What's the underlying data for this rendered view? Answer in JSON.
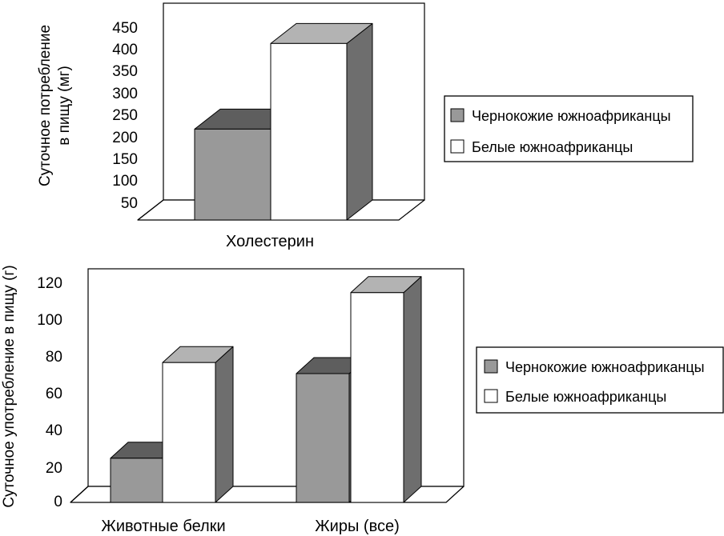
{
  "colors": {
    "black_front": "#999999",
    "black_top": "#5e5e5e",
    "black_side": "#6e6e6e",
    "white_front": "#ffffff",
    "white_top": "#b3b3b3",
    "white_side": "#6e6e6e",
    "floor": "#ffffff",
    "line": "#000000"
  },
  "chart_data": [
    {
      "type": "bar",
      "categories": [
        "Холестерин"
      ],
      "series": [
        {
          "name": "Чернокожие южноафриканцы",
          "values": [
            207
          ]
        },
        {
          "name": "Белые южноафриканцы",
          "values": [
            402
          ]
        }
      ],
      "ylabel": [
        "Суточное потребление",
        "в пищу (мг)"
      ],
      "yticks": [
        "50",
        "100",
        "150",
        "200",
        "250",
        "300",
        "350",
        "400",
        "450"
      ],
      "ylim": [
        0,
        450
      ],
      "legend_position": "right",
      "style": "3d"
    },
    {
      "type": "bar",
      "categories": [
        "Животные белки",
        "Жиры (все)"
      ],
      "series": [
        {
          "name": "Чернокожие южноафриканцы",
          "values": [
            24,
            70
          ]
        },
        {
          "name": "Белые южноафриканцы",
          "values": [
            76,
            114
          ]
        }
      ],
      "ylabel": [
        "Суточное употребление в пищу (г)"
      ],
      "yticks": [
        "0",
        "20",
        "40",
        "60",
        "80",
        "100",
        "120"
      ],
      "ylim": [
        0,
        120
      ],
      "legend_position": "right",
      "style": "3d"
    }
  ]
}
